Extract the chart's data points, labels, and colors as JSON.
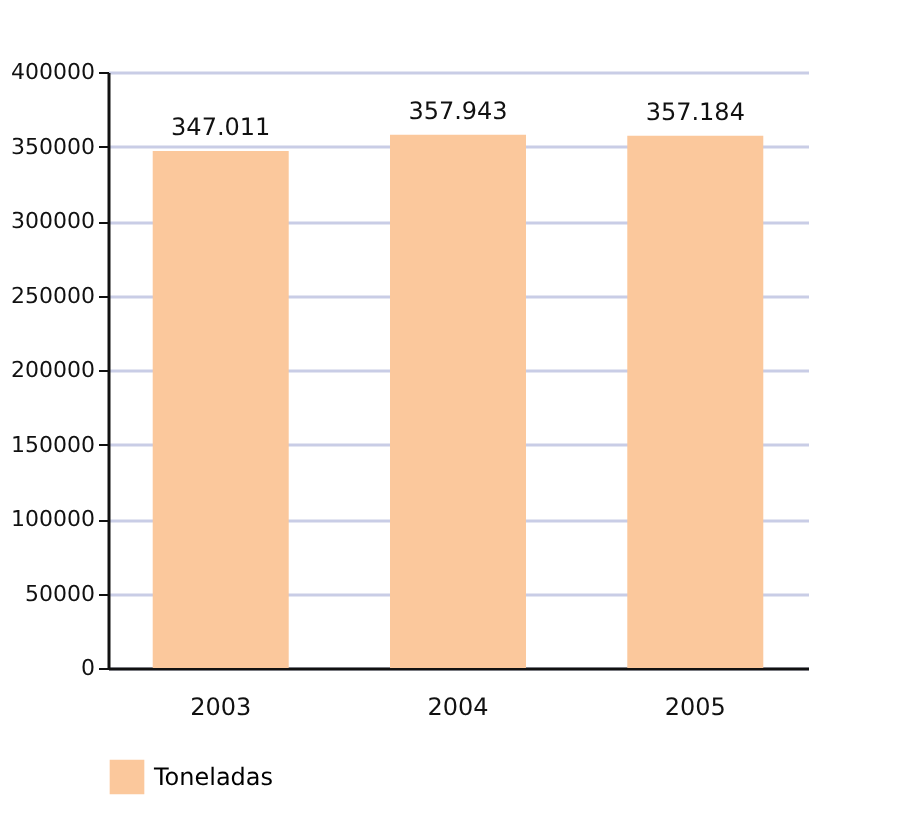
{
  "chart_data": {
    "type": "bar",
    "categories": [
      "2003",
      "2004",
      "2005"
    ],
    "series": [
      {
        "name": "Toneladas",
        "color": "#fbc89c",
        "values": [
          347011,
          357943,
          357184
        ]
      }
    ],
    "value_labels": [
      "347.011",
      "357.943",
      "357.184"
    ],
    "ylim": [
      0,
      400000
    ],
    "yticks": [
      0,
      50000,
      100000,
      150000,
      200000,
      250000,
      300000,
      350000,
      400000
    ],
    "grid": "y",
    "legend": "bottom"
  }
}
